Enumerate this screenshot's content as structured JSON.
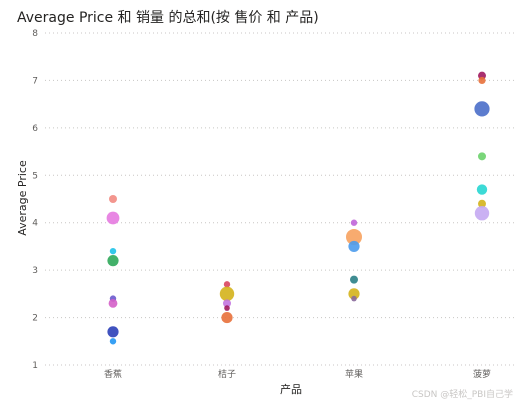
{
  "chart_data": {
    "type": "scatter",
    "title": "Average Price 和 销量 的总和(按 售价 和 产品)",
    "xlabel": "产品",
    "ylabel": "Average Price",
    "categories": [
      "香蕉",
      "桔子",
      "苹果",
      "菠萝"
    ],
    "ylim": [
      1,
      8
    ],
    "yticks": [
      1,
      2,
      3,
      4,
      5,
      6,
      7,
      8
    ],
    "grid": true,
    "points": [
      {
        "category": "香蕉",
        "y": 4.5,
        "size": 1.0,
        "color": "#f28b82"
      },
      {
        "category": "香蕉",
        "y": 4.1,
        "size": 1.6,
        "color": "#e57ae0"
      },
      {
        "category": "香蕉",
        "y": 3.4,
        "size": 0.8,
        "color": "#1ec2e8"
      },
      {
        "category": "香蕉",
        "y": 3.2,
        "size": 1.4,
        "color": "#2fa95a"
      },
      {
        "category": "香蕉",
        "y": 2.4,
        "size": 0.8,
        "color": "#6a5acd"
      },
      {
        "category": "香蕉",
        "y": 2.3,
        "size": 1.1,
        "color": "#d45fc8"
      },
      {
        "category": "香蕉",
        "y": 1.7,
        "size": 1.4,
        "color": "#2b3fb8"
      },
      {
        "category": "香蕉",
        "y": 1.5,
        "size": 0.8,
        "color": "#2196f3"
      },
      {
        "category": "桔子",
        "y": 2.7,
        "size": 0.8,
        "color": "#d9455f"
      },
      {
        "category": "桔子",
        "y": 2.5,
        "size": 1.8,
        "color": "#d4b21b"
      },
      {
        "category": "桔子",
        "y": 2.3,
        "size": 1.0,
        "color": "#c276e0"
      },
      {
        "category": "桔子",
        "y": 2.2,
        "size": 0.7,
        "color": "#a0195f"
      },
      {
        "category": "桔子",
        "y": 2.0,
        "size": 1.4,
        "color": "#e8703a"
      },
      {
        "category": "苹果",
        "y": 4.0,
        "size": 0.8,
        "color": "#c065d9"
      },
      {
        "category": "苹果",
        "y": 3.7,
        "size": 2.0,
        "color": "#f7a25f"
      },
      {
        "category": "苹果",
        "y": 3.5,
        "size": 1.4,
        "color": "#4b9bec"
      },
      {
        "category": "苹果",
        "y": 2.8,
        "size": 1.0,
        "color": "#2a7f86"
      },
      {
        "category": "苹果",
        "y": 2.5,
        "size": 1.4,
        "color": "#d4b21b"
      },
      {
        "category": "苹果",
        "y": 2.4,
        "size": 0.7,
        "color": "#8a6a9b"
      },
      {
        "category": "菠萝",
        "y": 7.1,
        "size": 1.0,
        "color": "#a0195f"
      },
      {
        "category": "菠萝",
        "y": 7.0,
        "size": 0.9,
        "color": "#e8703a"
      },
      {
        "category": "菠萝",
        "y": 6.4,
        "size": 1.9,
        "color": "#4a6ec9"
      },
      {
        "category": "菠萝",
        "y": 5.4,
        "size": 1.0,
        "color": "#6cd16c"
      },
      {
        "category": "菠萝",
        "y": 4.7,
        "size": 1.3,
        "color": "#27d6d2"
      },
      {
        "category": "菠萝",
        "y": 4.4,
        "size": 1.0,
        "color": "#d4b21b"
      },
      {
        "category": "菠萝",
        "y": 4.2,
        "size": 1.8,
        "color": "#c4a8f2"
      }
    ]
  },
  "watermark": "CSDN @轻松_PBI自己学"
}
